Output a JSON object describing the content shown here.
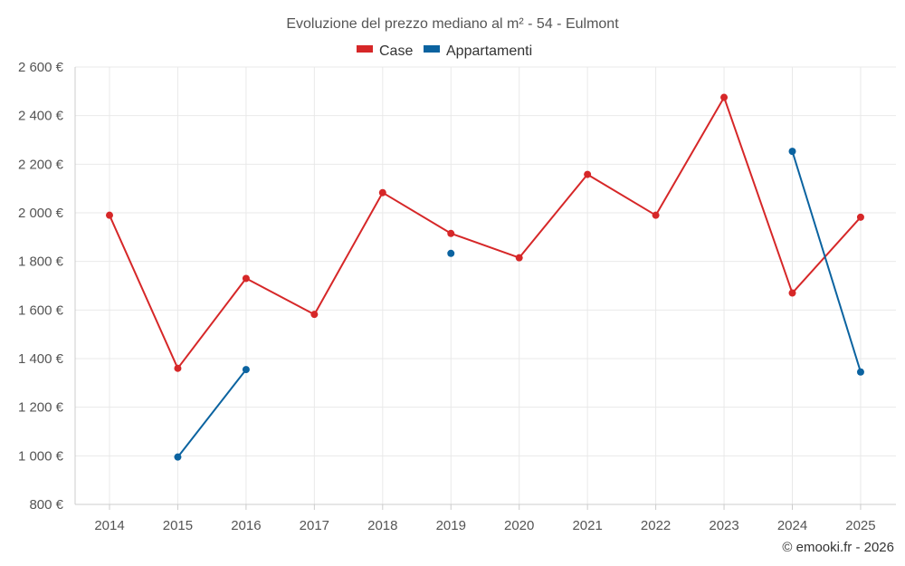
{
  "chart_data": {
    "type": "line",
    "title": "Evoluzione del prezzo mediano al m² - 54 - Eulmont",
    "categories": [
      "2014",
      "2015",
      "2016",
      "2017",
      "2018",
      "2019",
      "2020",
      "2021",
      "2022",
      "2023",
      "2024",
      "2025"
    ],
    "ylim": [
      800,
      2600
    ],
    "yticks": [
      800,
      1000,
      1200,
      1400,
      1600,
      1800,
      2000,
      2200,
      2400,
      2600
    ],
    "ytick_labels": [
      "800 €",
      "1 000 €",
      "1 200 €",
      "1 400 €",
      "1 600 €",
      "1 800 €",
      "2 000 €",
      "2 200 €",
      "2 400 €",
      "2 600 €"
    ],
    "grid": true,
    "legend_position": "top-center",
    "series": [
      {
        "name": "Case",
        "color": "#d62728",
        "values": [
          1990,
          1360,
          1730,
          1582,
          2083,
          1915,
          1815,
          2158,
          1990,
          2475,
          1670,
          1982
        ]
      },
      {
        "name": "Appartamenti",
        "color": "#0b63a0",
        "values": [
          null,
          995,
          1355,
          null,
          null,
          1833,
          null,
          null,
          null,
          null,
          2253,
          1345
        ]
      }
    ]
  },
  "credit": "© emooki.fr - 2026"
}
